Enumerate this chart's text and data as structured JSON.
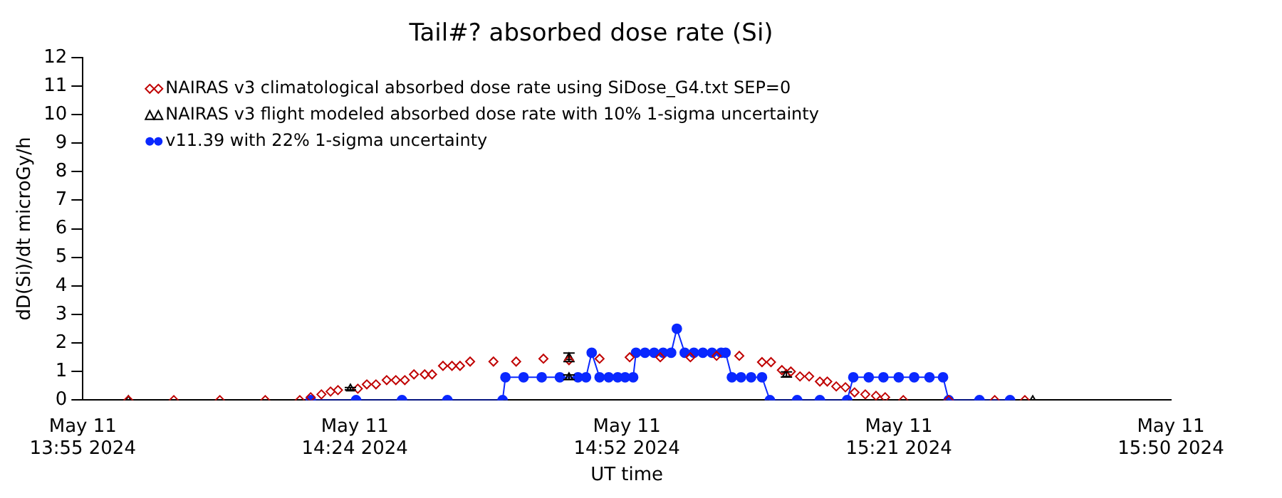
{
  "chart_data": {
    "type": "line",
    "title": "Tail#? absorbed dose rate (Si)",
    "xlabel": "UT time",
    "ylabel": "dD(Si)/dt microGy/h",
    "xlim": [
      "2024-05-11T13:55:00",
      "2024-05-11T15:50:00"
    ],
    "xticks": [
      {
        "value": "2024-05-11T13:55:00",
        "label": "May 11\n13:55 2024"
      },
      {
        "value": "2024-05-11T14:23:45",
        "label": "May 11\n14:24 2024"
      },
      {
        "value": "2024-05-11T14:52:30",
        "label": "May 11\n14:52 2024"
      },
      {
        "value": "2024-05-11T15:21:15",
        "label": "May 11\n15:21 2024"
      },
      {
        "value": "2024-05-11T15:50:00",
        "label": "May 11\n15:50 2024"
      }
    ],
    "ylim": [
      0,
      12
    ],
    "yticks": [
      0,
      1,
      2,
      3,
      4,
      5,
      6,
      7,
      8,
      9,
      10,
      11,
      12
    ],
    "grid": false,
    "legend": "top left",
    "series": [
      {
        "name": "NAIRAS v3 climatological absorbed dose rate using SiDose_G4.txt SEP=0",
        "type": "scatter",
        "marker": "diamond",
        "color": "#c00000",
        "x": [
          "2024-05-11T13:59:49",
          "2024-05-11T14:04:37",
          "2024-05-11T14:09:29",
          "2024-05-11T14:14:17",
          "2024-05-11T14:17:56",
          "2024-05-11T14:19:05",
          "2024-05-11T14:20:13",
          "2024-05-11T14:21:11",
          "2024-05-11T14:21:58",
          "2024-05-11T14:24:04",
          "2024-05-11T14:25:01",
          "2024-05-11T14:25:59",
          "2024-05-11T14:27:07",
          "2024-05-11T14:28:05",
          "2024-05-11T14:29:02",
          "2024-05-11T14:30:00",
          "2024-05-11T14:31:08",
          "2024-05-11T14:31:55",
          "2024-05-11T14:33:04",
          "2024-05-11T14:34:01",
          "2024-05-11T14:34:52",
          "2024-05-11T14:35:56",
          "2024-05-11T14:38:24",
          "2024-05-11T14:40:48",
          "2024-05-11T14:43:41",
          "2024-05-11T14:46:23",
          "2024-05-11T14:49:37",
          "2024-05-11T14:52:48",
          "2024-05-11T14:56:02",
          "2024-05-11T14:59:13",
          "2024-05-11T15:01:59",
          "2024-05-11T15:04:23",
          "2024-05-11T15:06:47",
          "2024-05-11T15:07:44",
          "2024-05-11T15:08:53",
          "2024-05-11T15:09:50",
          "2024-05-11T15:10:48",
          "2024-05-11T15:11:46",
          "2024-05-11T15:12:54",
          "2024-05-11T15:13:41",
          "2024-05-11T15:14:38",
          "2024-05-11T15:15:36",
          "2024-05-11T15:16:34",
          "2024-05-11T15:17:42",
          "2024-05-11T15:18:50",
          "2024-05-11T15:19:48",
          "2024-05-11T15:21:43",
          "2024-05-11T15:26:31",
          "2024-05-11T15:31:23",
          "2024-05-11T15:34:34"
        ],
        "values": [
          0,
          0,
          0,
          0,
          0,
          0.1,
          0.2,
          0.3,
          0.35,
          0.4,
          0.55,
          0.55,
          0.7,
          0.7,
          0.7,
          0.9,
          0.9,
          0.9,
          1.2,
          1.2,
          1.2,
          1.35,
          1.35,
          1.35,
          1.45,
          1.4,
          1.45,
          1.5,
          1.5,
          1.5,
          1.55,
          1.55,
          1.33,
          1.33,
          1.05,
          1.0,
          0.83,
          0.83,
          0.65,
          0.65,
          0.48,
          0.45,
          0.27,
          0.2,
          0.15,
          0.1,
          0,
          0,
          0,
          0
        ]
      },
      {
        "name": "NAIRAS v3 flight modeled absorbed dose rate with 10% 1-sigma uncertainty",
        "type": "scatter",
        "marker": "triangle",
        "color": "#000000",
        "x": [
          "2024-05-11T13:59:49",
          "2024-05-11T14:23:17",
          "2024-05-11T14:46:23",
          "2024-05-11T14:46:23",
          "2024-05-11T15:09:22",
          "2024-05-11T15:35:24"
        ],
        "values": [
          0,
          0.4,
          1.5,
          0.8,
          0.9,
          0
        ],
        "errors": [
          null,
          0.04,
          0.15,
          0.08,
          0.09,
          null
        ]
      },
      {
        "name": "v11.39 with 22% 1-sigma uncertainty",
        "type": "line",
        "marker": "circle",
        "line_style": "solid",
        "color": "#0a28ff",
        "x": [
          "2024-05-11T14:19:05",
          "2024-05-11T14:23:53",
          "2024-05-11T14:28:44",
          "2024-05-11T14:33:32",
          "2024-05-11T14:39:22",
          "2024-05-11T14:39:40",
          "2024-05-11T14:41:35",
          "2024-05-11T14:43:30",
          "2024-05-11T14:45:25",
          "2024-05-11T14:47:20",
          "2024-05-11T14:48:11",
          "2024-05-11T14:48:47",
          "2024-05-11T14:49:37",
          "2024-05-11T14:50:35",
          "2024-05-11T14:51:32",
          "2024-05-11T14:52:19",
          "2024-05-11T14:53:10",
          "2024-05-11T14:53:28",
          "2024-05-11T14:54:25",
          "2024-05-11T14:55:23",
          "2024-05-11T14:56:20",
          "2024-05-11T14:57:11",
          "2024-05-11T14:57:47",
          "2024-05-11T14:58:37",
          "2024-05-11T14:59:35",
          "2024-05-11T15:00:32",
          "2024-05-11T15:01:30",
          "2024-05-11T15:02:28",
          "2024-05-11T15:02:56",
          "2024-05-11T15:03:36",
          "2024-05-11T15:04:34",
          "2024-05-11T15:05:38",
          "2024-05-11T15:06:47",
          "2024-05-11T15:07:37",
          "2024-05-11T15:10:30",
          "2024-05-11T15:12:54",
          "2024-05-11T15:15:47",
          "2024-05-11T15:16:26",
          "2024-05-11T15:18:04",
          "2024-05-11T15:19:37",
          "2024-05-11T15:21:14",
          "2024-05-11T15:22:52",
          "2024-05-11T15:24:29",
          "2024-05-11T15:25:55",
          "2024-05-11T15:26:31",
          "2024-05-11T15:29:46",
          "2024-05-11T15:33:00"
        ],
        "values": [
          0,
          0,
          0,
          0,
          0,
          0.8,
          0.8,
          0.8,
          0.8,
          0.8,
          0.8,
          1.66,
          0.8,
          0.8,
          0.8,
          0.8,
          0.8,
          1.66,
          1.66,
          1.66,
          1.66,
          1.66,
          2.5,
          1.66,
          1.66,
          1.66,
          1.66,
          1.66,
          1.66,
          0.8,
          0.8,
          0.8,
          0.8,
          0,
          0,
          0,
          0,
          0.8,
          0.8,
          0.8,
          0.8,
          0.8,
          0.8,
          0.8,
          0,
          0,
          0
        ]
      }
    ]
  }
}
